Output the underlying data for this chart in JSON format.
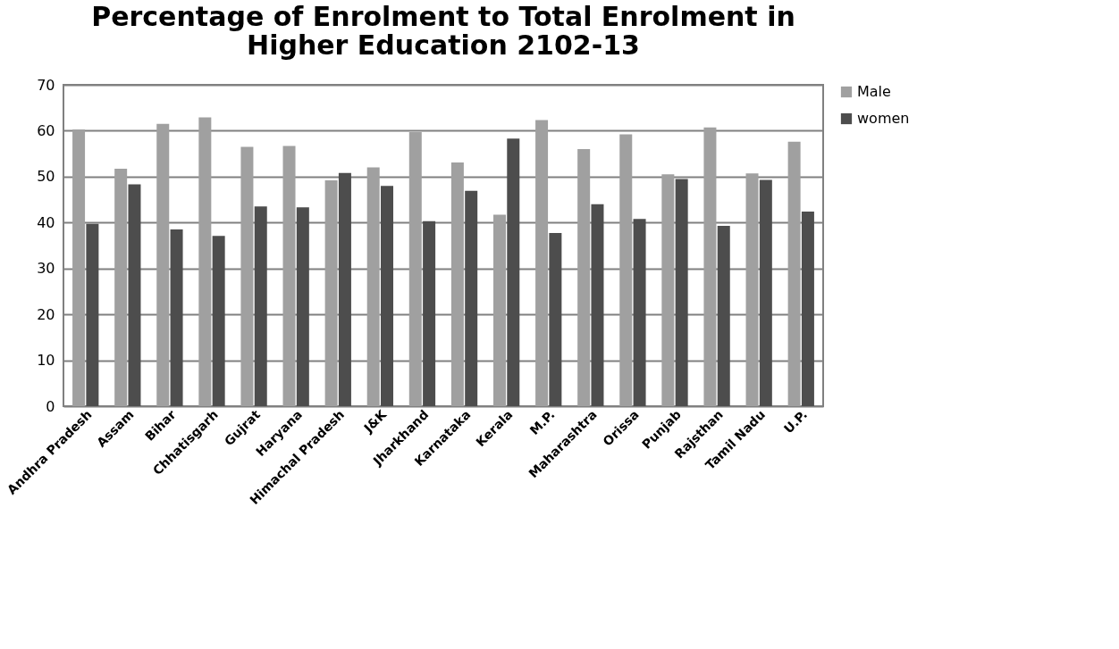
{
  "chart_data": {
    "type": "bar",
    "title": [
      "Percentage of Enrolment to Total Enrolment in",
      "Higher Education 2102-13"
    ],
    "categories": [
      "Andhra Pradesh",
      "Assam",
      "Bihar",
      "Chhatisgarh",
      "Gujrat",
      "Haryana",
      "Himachal Pradesh",
      "J&K",
      "Jharkhand",
      "Karnataka",
      "Kerala",
      "M.P.",
      "Maharashtra",
      "Orissa",
      "Punjab",
      "Rajsthan",
      "Tamil Nadu",
      "U.P."
    ],
    "series": [
      {
        "name": "Male",
        "color": "#a0a0a0",
        "values": [
          60.3,
          51.7,
          61.5,
          62.9,
          56.5,
          56.7,
          49.2,
          52.0,
          59.7,
          53.1,
          41.7,
          62.3,
          56.0,
          59.2,
          50.5,
          60.7,
          50.7,
          57.6
        ]
      },
      {
        "name": "women",
        "color": "#4d4d4d",
        "values": [
          39.7,
          48.3,
          38.5,
          37.1,
          43.5,
          43.3,
          50.8,
          48.0,
          40.3,
          46.9,
          58.3,
          37.7,
          44.0,
          40.8,
          49.5,
          39.3,
          49.3,
          42.4
        ]
      }
    ],
    "ylim": [
      0,
      70
    ],
    "yticks": [
      0,
      10,
      20,
      30,
      40,
      50,
      60,
      70
    ],
    "grid": "y",
    "legend": "right"
  }
}
